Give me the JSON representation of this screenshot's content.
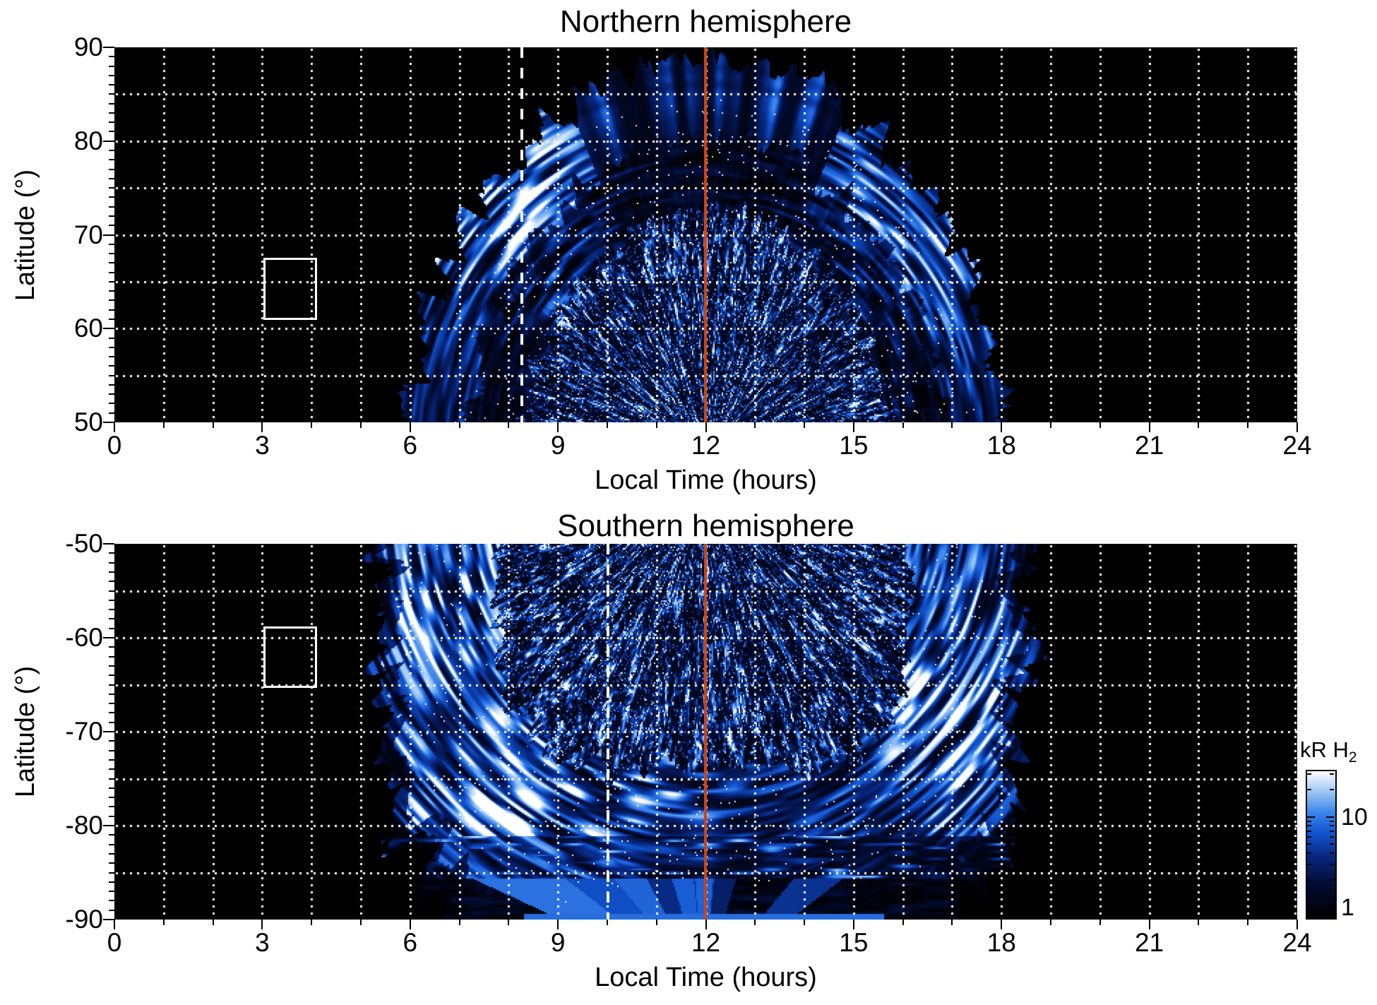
{
  "figure": {
    "background": "#ffffff",
    "colors": {
      "noon_line": "#d2420c",
      "grid_dots": "#ffffff",
      "frame": "#000000",
      "overlay_white": "#ffffff"
    },
    "colormap_stops": [
      [
        0.0,
        "#000000"
      ],
      [
        0.22,
        "#020b30"
      ],
      [
        0.42,
        "#07277e"
      ],
      [
        0.58,
        "#1254cf"
      ],
      [
        0.72,
        "#3c86ea"
      ],
      [
        0.86,
        "#9cc6f5"
      ],
      [
        1.0,
        "#ffffff"
      ]
    ]
  },
  "panels": [
    {
      "title": "Northern hemisphere",
      "xlabel": "Local Time (hours)",
      "ylabel": "Latitude (°)",
      "xtick_labels": [
        "0",
        "3",
        "6",
        "9",
        "12",
        "15",
        "18",
        "21",
        "24"
      ],
      "xtick_values": [
        0,
        3,
        6,
        9,
        12,
        15,
        18,
        21,
        24
      ],
      "ytick_labels": [
        "90",
        "80",
        "70",
        "60",
        "50"
      ],
      "ytick_values": [
        90,
        80,
        70,
        60,
        50
      ]
    },
    {
      "title": "Southern hemisphere",
      "xlabel": "Local Time (hours)",
      "ylabel": "Latitude (°)",
      "xtick_labels": [
        "0",
        "3",
        "6",
        "9",
        "12",
        "15",
        "18",
        "21",
        "24"
      ],
      "xtick_values": [
        0,
        3,
        6,
        9,
        12,
        15,
        18,
        21,
        24
      ],
      "ytick_labels": [
        "-50",
        "-60",
        "-70",
        "-80",
        "-90"
      ],
      "ytick_values": [
        -50,
        -60,
        -70,
        -80,
        -90
      ]
    }
  ],
  "colorbar": {
    "label_main": "kR H",
    "label_sub": "2",
    "tick_labels": [
      "10",
      "1"
    ],
    "tick_values": [
      10,
      1
    ],
    "minor_tick_values": [
      2,
      3,
      4,
      5,
      6,
      7,
      8,
      9,
      20,
      30
    ],
    "scale": "log",
    "value_min": 0.79,
    "value_max": 33.4
  },
  "chart_data": [
    {
      "type": "heatmap",
      "title": "Northern hemisphere",
      "xlabel": "Local Time (hours)",
      "ylabel": "Latitude (°)",
      "xlim": [
        0,
        24
      ],
      "ylim": [
        50,
        90
      ],
      "xticks": [
        0,
        3,
        6,
        9,
        12,
        15,
        18,
        21,
        24
      ],
      "yticks": [
        90,
        80,
        70,
        60,
        50
      ],
      "grid": {
        "x_interval_hours": 1,
        "y_interval_deg": 5,
        "style": "white dotted"
      },
      "value_units": "kR H2",
      "scale": "log",
      "scale_range_kR": [
        0.8,
        33
      ],
      "background_means": "black = no data / below scale",
      "coverage": {
        "lt_range": [
          6.4,
          18.1
        ],
        "lat_max_reached": 87.5,
        "shape": "dome centered near local noon"
      },
      "features": [
        "dense salt-and-pepper speckle (dark blue / bright blue / white) for lat 50-70 between LT 9-15",
        "large saturated white emission patch at LT 7-9.5, lat 69-76",
        "bright curved arc segments at LT 15-17.5, lat 65-80",
        "darker low-emission band near lat 75-80, LT 10-14",
        "fan of blue wedge streaks converging toward noon above lat 83, reaching lat ~87.5",
        "swath striations curved concentric about a point near (LT 12, lat 47)"
      ],
      "overlays": {
        "solar_noon_line": {
          "lt": 12,
          "color": "#d2420c",
          "style": "solid"
        },
        "dashed_line": {
          "lt": 8.27,
          "color": "#ffffff",
          "style": "dashed"
        },
        "reference_box": {
          "lt_range": [
            3.02,
            4.03
          ],
          "lat_range": [
            61.4,
            67.6
          ],
          "color": "#ffffff"
        }
      },
      "render": {
        "seed": 7,
        "cx_lt": 12.05,
        "cy_lat": 47,
        "deg_per_hour": 5.8,
        "semi_x": 35,
        "semi_y": 41,
        "superexp": 2,
        "speckle_max": 0.62,
        "arc_min": 0.8,
        "top_fan_halfangle": 0.42,
        "flip": false,
        "polar_fan": false,
        "highlights": [
          {
            "phi": -0.75,
            "sigma": 0.22,
            "gain": 1.2
          },
          {
            "phi": 0.8,
            "sigma": 0.3,
            "gain": 0.75
          }
        ]
      }
    },
    {
      "type": "heatmap",
      "title": "Southern hemisphere",
      "xlabel": "Local Time (hours)",
      "ylabel": "Latitude (°)",
      "xlim": [
        0,
        24
      ],
      "ylim": [
        -90,
        -50
      ],
      "xticks": [
        0,
        3,
        6,
        9,
        12,
        15,
        18,
        21,
        24
      ],
      "yticks": [
        -50,
        -60,
        -70,
        -80,
        -90
      ],
      "grid": {
        "x_interval_hours": 1,
        "y_interval_deg": 5,
        "style": "white dotted"
      },
      "value_units": "kR H2",
      "scale": "log",
      "scale_range_kR": [
        0.8,
        33
      ],
      "background_means": "black = no data / below scale",
      "coverage": {
        "lt_range": [
          4.8,
          18.7
        ],
        "lat_range": [
          -50,
          -90
        ],
        "shape": "broad swath reaching the pole"
      },
      "features": [
        "dense salt-and-pepper speckle for lat -50 to -70 between LT 7.5-16.5",
        "bright white auroral oval arc from (LT 6.5, -55) sweeping down to (LT 11, -78)",
        "bright white band at LT 16.5-18.6, lat -62 to -80",
        "horizontal swath streaks for lat -81 to -88 spanning LT 5.5-18.5",
        "fan of dark/medium blue wedges converging toward the pole below lat -85",
        "solid medium-blue triangle at LT 11.5-13 near the pole and bright strip at lat -89.5 for LT 8.3-15.6"
      ],
      "overlays": {
        "solar_noon_line": {
          "lt": 12,
          "color": "#d2420c",
          "style": "solid"
        },
        "dashed_line": {
          "lt": 10.0,
          "color": "#ffffff",
          "style": "dashed"
        },
        "reference_box": {
          "lt_range": [
            3.02,
            4.03
          ],
          "lat_range": [
            -58.8,
            -64.9
          ],
          "color": "#ffffff"
        }
      },
      "render": {
        "seed": 13,
        "cx_lt": 11.95,
        "cy_lat": -44,
        "deg_per_hour": 5.8,
        "semi_x": 38.5,
        "semi_y": 47,
        "superexp": 4,
        "speckle_max": 0.64,
        "arc_min": 0.64,
        "arc_max": 0.95,
        "flip": true,
        "polar_fan": true,
        "hstreak_lat": -81,
        "pole_fan_lat": -85.5,
        "bottom_strip_lat": -89.3,
        "bottom_strip_lt": [
          8.3,
          15.6
        ],
        "highlights": [
          {
            "phi": -0.45,
            "sigma": 0.3,
            "gain": 1.1
          },
          {
            "phi": -1.25,
            "sigma": 0.25,
            "gain": 0.8
          },
          {
            "phi": 0.95,
            "sigma": 0.3,
            "gain": 0.95
          }
        ]
      }
    }
  ]
}
